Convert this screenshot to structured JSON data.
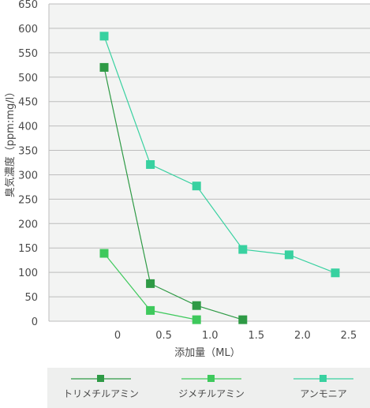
{
  "chart_data": {
    "type": "line",
    "xlabel": "添加量（ML）",
    "ylabel": "臭気濃度（ppm:mg/l）",
    "x_tick_labels": [
      "0",
      "0.5",
      "1.0",
      "1.5",
      "2.0",
      "2.5"
    ],
    "ylim": [
      0,
      650
    ],
    "y_ticks": [
      0,
      50,
      100,
      150,
      200,
      250,
      300,
      350,
      400,
      450,
      500,
      550,
      600,
      650
    ],
    "grid": "horizontal",
    "legend_position": "bottom",
    "series": [
      {
        "name": "トリメチルアミン",
        "color": "#2e9a45",
        "marker": "square",
        "points": [
          {
            "x": 0,
            "y": 520
          },
          {
            "x": 0.5,
            "y": 77
          },
          {
            "x": 1.0,
            "y": 32
          },
          {
            "x": 1.5,
            "y": 3
          }
        ]
      },
      {
        "name": "ジメチルアミン",
        "color": "#3ec95c",
        "marker": "square",
        "points": [
          {
            "x": 0,
            "y": 139
          },
          {
            "x": 0.5,
            "y": 22
          },
          {
            "x": 1.0,
            "y": 3
          }
        ]
      },
      {
        "name": "アンモニア",
        "color": "#38d1a0",
        "marker": "square",
        "points": [
          {
            "x": 0,
            "y": 584
          },
          {
            "x": 0.5,
            "y": 321
          },
          {
            "x": 1.0,
            "y": 277
          },
          {
            "x": 1.5,
            "y": 147
          },
          {
            "x": 2.0,
            "y": 136
          },
          {
            "x": 2.5,
            "y": 99
          }
        ]
      }
    ]
  }
}
